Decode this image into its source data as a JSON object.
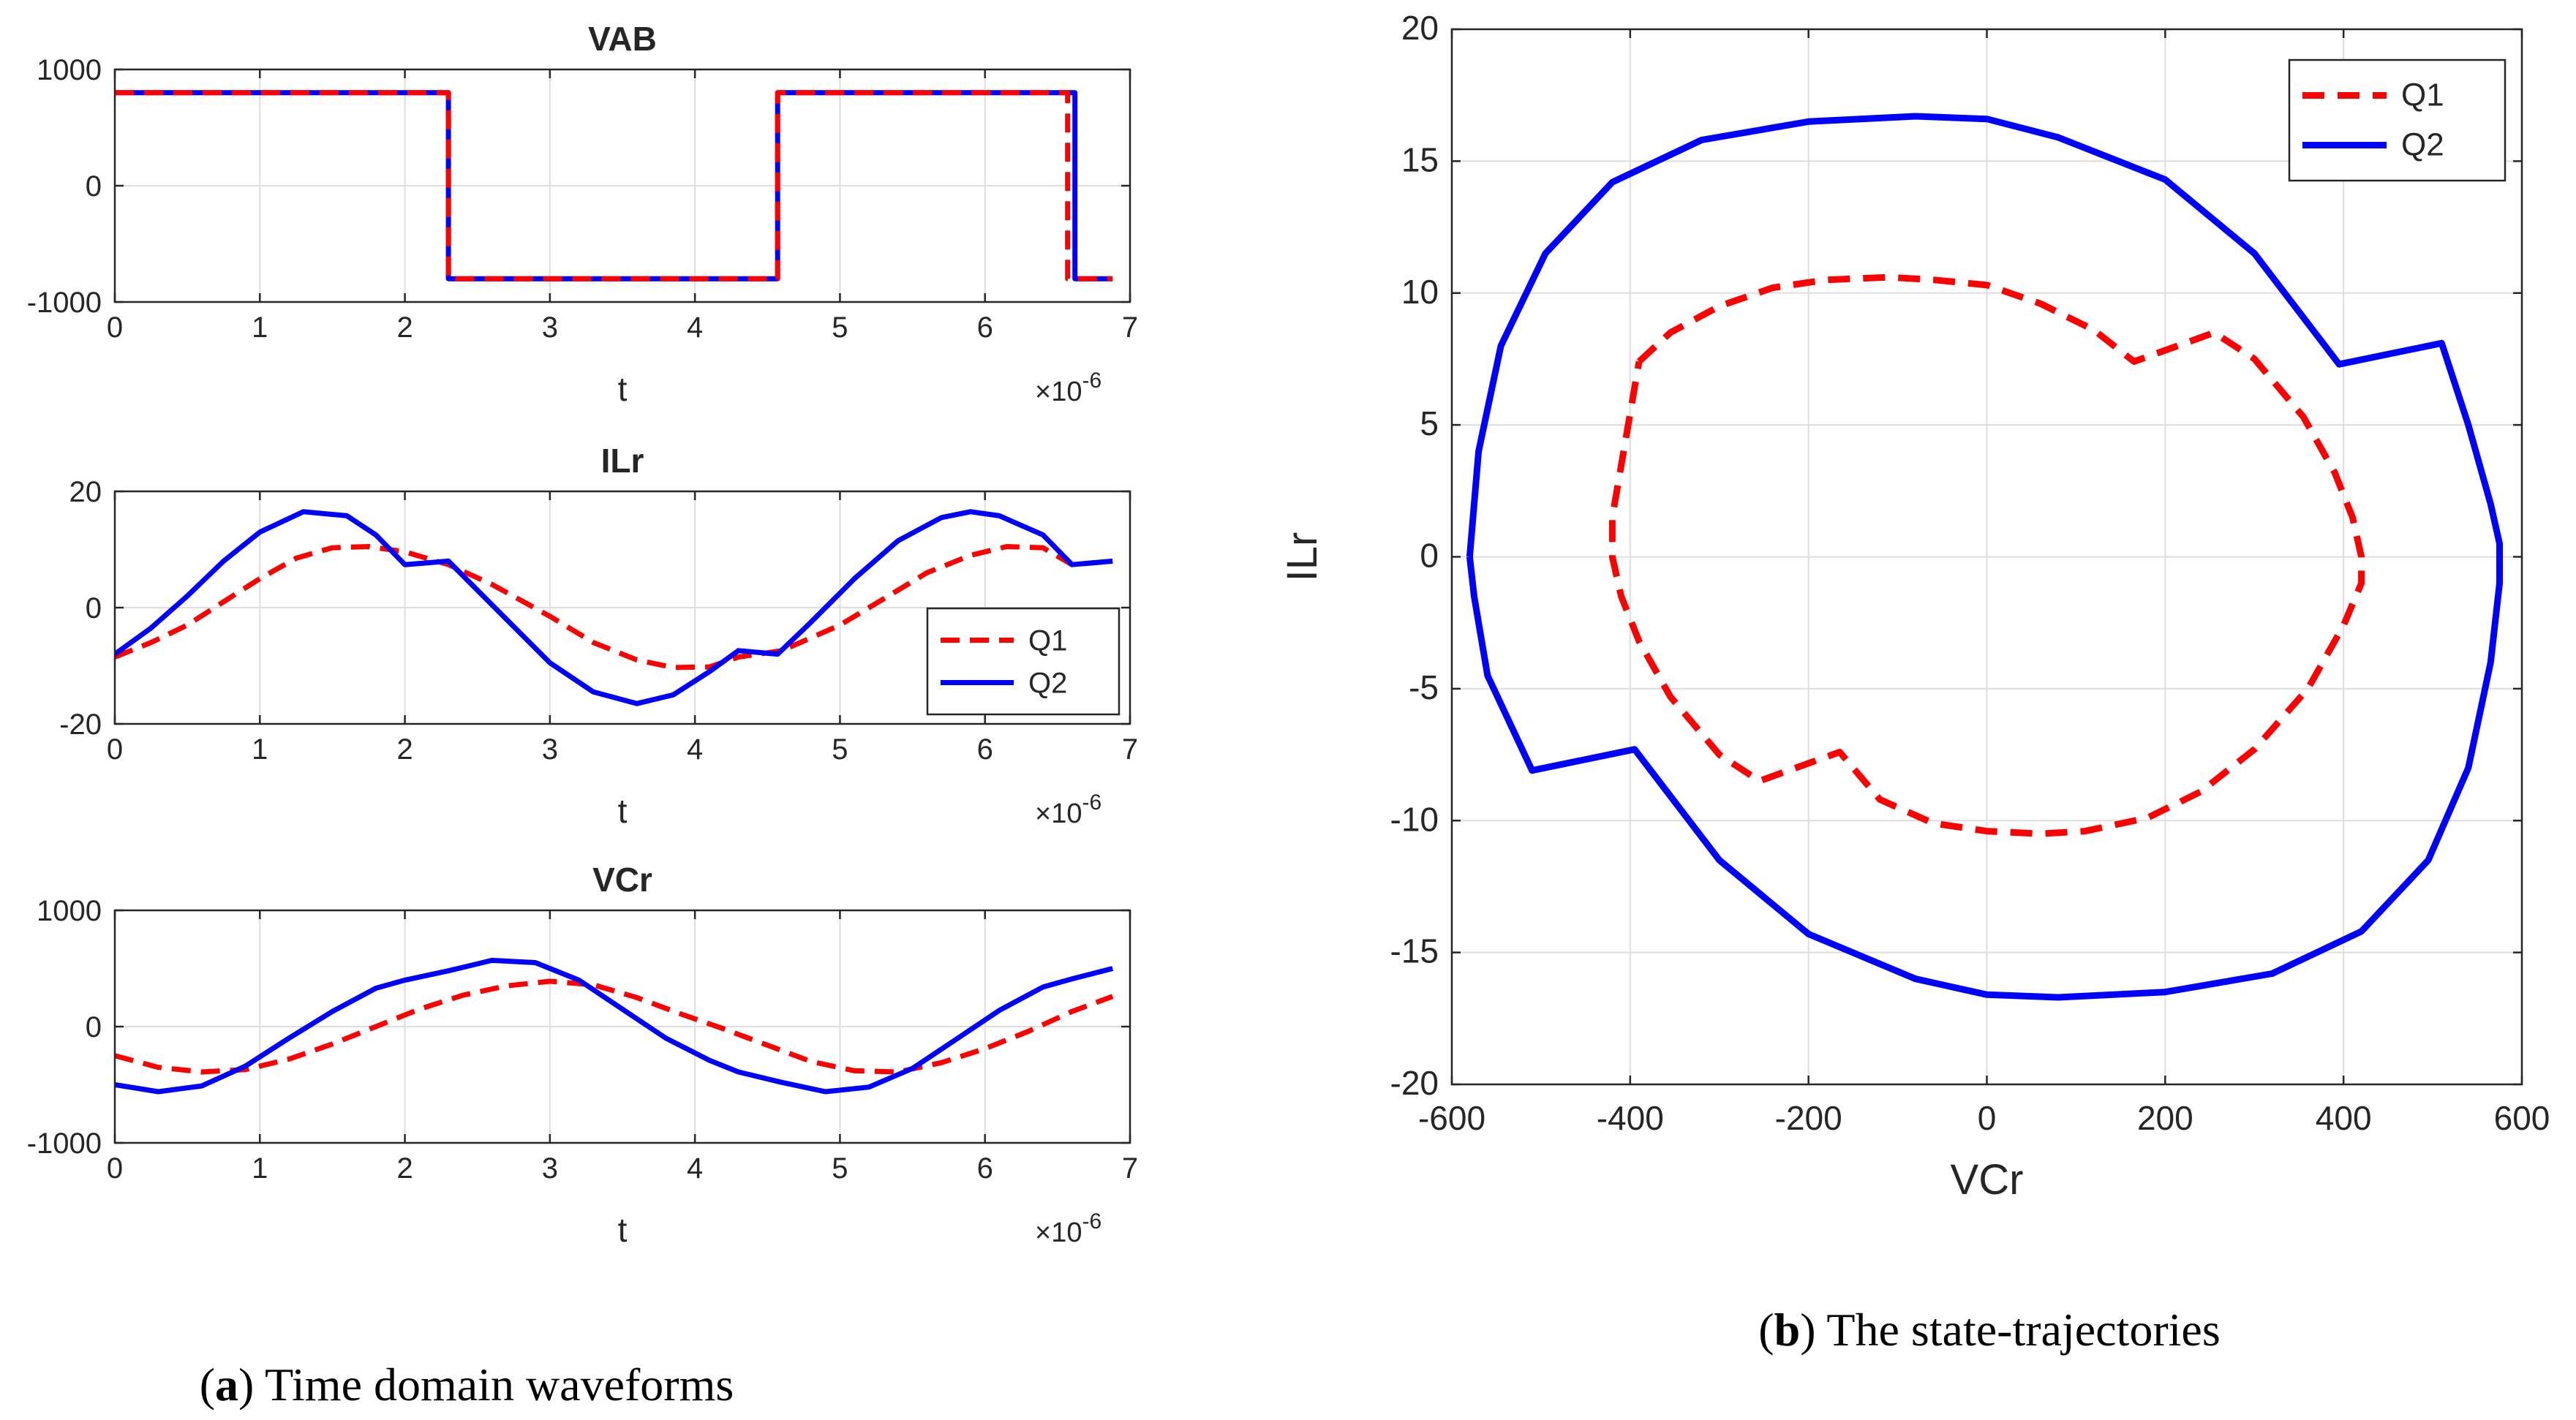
{
  "colors": {
    "q1": "#ff0000",
    "q2": "#0000ff",
    "grid": "#dedede",
    "axis": "#262626"
  },
  "captions": {
    "a": {
      "letter": "a",
      "text": " Time domain waveforms"
    },
    "b": {
      "letter": "b",
      "text": " The state-trajectories"
    }
  },
  "chart_data": [
    {
      "id": "vab",
      "type": "line",
      "title": "VAB",
      "xlabel": "t",
      "x_exponent": "×10",
      "x_exponent_power": "-6",
      "xlim": [
        0,
        7
      ],
      "ylim": [
        -1000,
        1000
      ],
      "xticks": [
        "0",
        "1",
        "2",
        "3",
        "4",
        "5",
        "6",
        "7"
      ],
      "yticks": [
        "-1000",
        "0",
        "1000"
      ],
      "ytick_values": [
        -1000,
        0,
        1000
      ],
      "grid": true,
      "series": [
        {
          "name": "Q1",
          "style": "dashed",
          "x": [
            0,
            2.3,
            2.3,
            4.57,
            4.57,
            6.57,
            6.57,
            6.88
          ],
          "y": [
            800,
            800,
            -800,
            -800,
            800,
            800,
            -800,
            -800
          ]
        },
        {
          "name": "Q2",
          "style": "solid",
          "x": [
            0,
            2.3,
            2.3,
            4.57,
            4.57,
            6.62,
            6.62,
            6.88
          ],
          "y": [
            800,
            800,
            -800,
            -800,
            800,
            800,
            -800,
            -800
          ]
        }
      ]
    },
    {
      "id": "ilr",
      "type": "line",
      "title": "ILr",
      "xlabel": "t",
      "x_exponent": "×10",
      "x_exponent_power": "-6",
      "xlim": [
        0,
        7
      ],
      "ylim": [
        -20,
        20
      ],
      "xticks": [
        "0",
        "1",
        "2",
        "3",
        "4",
        "5",
        "6",
        "7"
      ],
      "yticks": [
        "-20",
        "0",
        "20"
      ],
      "ytick_values": [
        -20,
        0,
        20
      ],
      "grid": true,
      "legend": {
        "position": "bottom-right",
        "entries": [
          "Q1",
          "Q2"
        ]
      },
      "series": [
        {
          "name": "Q1",
          "style": "dashed",
          "x": [
            0,
            0.25,
            0.5,
            0.75,
            1.0,
            1.25,
            1.5,
            1.75,
            2.0,
            2.3,
            2.6,
            3.0,
            3.3,
            3.6,
            3.85,
            4.1,
            4.3,
            4.6,
            5.0,
            5.3,
            5.6,
            5.9,
            6.15,
            6.4,
            6.6,
            6.88
          ],
          "y": [
            -8.5,
            -6,
            -3,
            1,
            5,
            8.5,
            10.3,
            10.5,
            9.6,
            7.4,
            4,
            -1.5,
            -6,
            -9,
            -10.3,
            -10.2,
            -8.5,
            -7.4,
            -3,
            1.5,
            6,
            9,
            10.5,
            10.3,
            7.4,
            8
          ]
        },
        {
          "name": "Q2",
          "style": "solid",
          "x": [
            0,
            0.25,
            0.5,
            0.75,
            1.0,
            1.3,
            1.6,
            1.8,
            2.0,
            2.3,
            2.6,
            3.0,
            3.3,
            3.6,
            3.85,
            4.1,
            4.3,
            4.57,
            4.8,
            5.1,
            5.4,
            5.7,
            5.9,
            6.1,
            6.4,
            6.6,
            6.88
          ],
          "y": [
            -8,
            -3.5,
            2,
            8,
            13,
            16.5,
            15.8,
            12.5,
            7.4,
            8,
            0.5,
            -9.5,
            -14.5,
            -16.5,
            -15,
            -11,
            -7.4,
            -8,
            -2.5,
            5,
            11.5,
            15.5,
            16.5,
            15.8,
            12.5,
            7.4,
            8
          ]
        }
      ]
    },
    {
      "id": "vcr",
      "type": "line",
      "title": "VCr",
      "xlabel": "t",
      "x_exponent": "×10",
      "x_exponent_power": "-6",
      "xlim": [
        0,
        7
      ],
      "ylim": [
        -1000,
        1000
      ],
      "xticks": [
        "0",
        "1",
        "2",
        "3",
        "4",
        "5",
        "6",
        "7"
      ],
      "yticks": [
        "-1000",
        "0",
        "1000"
      ],
      "ytick_values": [
        -1000,
        0,
        1000
      ],
      "grid": true,
      "series": [
        {
          "name": "Q1",
          "style": "dashed",
          "x": [
            0,
            0.3,
            0.6,
            0.9,
            1.2,
            1.5,
            1.8,
            2.1,
            2.4,
            2.7,
            3.0,
            3.3,
            3.6,
            3.9,
            4.2,
            4.5,
            4.8,
            5.1,
            5.4,
            5.7,
            6.0,
            6.3,
            6.6,
            6.88
          ],
          "y": [
            -250,
            -350,
            -390,
            -370,
            -280,
            -150,
            0,
            150,
            270,
            350,
            390,
            360,
            250,
            110,
            -20,
            -160,
            -300,
            -380,
            -390,
            -310,
            -190,
            -40,
            130,
            260
          ]
        },
        {
          "name": "Q2",
          "style": "solid",
          "x": [
            0,
            0.3,
            0.6,
            0.9,
            1.2,
            1.5,
            1.8,
            2.0,
            2.3,
            2.6,
            2.9,
            3.2,
            3.5,
            3.8,
            4.1,
            4.3,
            4.6,
            4.9,
            5.2,
            5.5,
            5.8,
            6.1,
            6.4,
            6.6,
            6.88
          ],
          "y": [
            -500,
            -560,
            -510,
            -340,
            -100,
            130,
            330,
            400,
            480,
            570,
            550,
            400,
            150,
            -100,
            -290,
            -390,
            -480,
            -560,
            -520,
            -360,
            -110,
            140,
            340,
            410,
            500
          ]
        }
      ]
    },
    {
      "id": "trajectory",
      "type": "line",
      "title": "",
      "xlabel": "VCr",
      "ylabel": "ILr",
      "xlim": [
        -600,
        600
      ],
      "ylim": [
        -20,
        20
      ],
      "xticks": [
        "-600",
        "-400",
        "-200",
        "0",
        "200",
        "400",
        "600"
      ],
      "xtick_values": [
        -600,
        -400,
        -200,
        0,
        200,
        400,
        600
      ],
      "yticks": [
        "-20",
        "-15",
        "-10",
        "-5",
        "0",
        "5",
        "10",
        "15",
        "20"
      ],
      "ytick_values": [
        -20,
        -15,
        -10,
        -5,
        0,
        5,
        10,
        15,
        20
      ],
      "grid": true,
      "legend": {
        "position": "top-right",
        "entries": [
          "Q1",
          "Q2"
        ]
      },
      "series": [
        {
          "name": "Q1",
          "style": "dashed",
          "x": [
            -390,
            -355,
            -300,
            -240,
            -180,
            -110,
            -60,
            0,
            60,
            120,
            165,
            255,
            300,
            355,
            390,
            410,
            420,
            420,
            400,
            360,
            300,
            240,
            180,
            110,
            60,
            0,
            -60,
            -120,
            -165,
            -255,
            -300,
            -355,
            -390,
            -410,
            -420,
            -420,
            -390
          ],
          "y": [
            7.4,
            8.5,
            9.5,
            10.2,
            10.5,
            10.6,
            10.5,
            10.3,
            9.6,
            8.6,
            7.4,
            8.5,
            7.5,
            5.3,
            3.2,
            1.5,
            0,
            -1,
            -2.6,
            -5,
            -7.3,
            -8.9,
            -9.9,
            -10.4,
            -10.5,
            -10.4,
            -10.1,
            -9.2,
            -7.4,
            -8.5,
            -7.5,
            -5.3,
            -3.2,
            -1.5,
            0,
            1.5,
            7.4
          ]
        },
        {
          "name": "Q2",
          "style": "solid",
          "x": [
            -580,
            -570,
            -545,
            -495,
            -420,
            -320,
            -200,
            -80,
            0,
            80,
            200,
            300,
            395,
            510,
            540,
            565,
            575,
            575,
            565,
            540,
            495,
            420,
            320,
            200,
            80,
            0,
            -80,
            -200,
            -300,
            -395,
            -510,
            -560,
            -575,
            -580
          ],
          "y": [
            0,
            4,
            8,
            11.5,
            14.2,
            15.8,
            16.5,
            16.7,
            16.6,
            15.9,
            14.3,
            11.5,
            7.3,
            8.1,
            5,
            2,
            0.5,
            -1,
            -4,
            -8,
            -11.5,
            -14.2,
            -15.8,
            -16.5,
            -16.7,
            -16.6,
            -16,
            -14.3,
            -11.5,
            -7.3,
            -8.1,
            -4.5,
            -1.5,
            0
          ]
        }
      ]
    }
  ]
}
